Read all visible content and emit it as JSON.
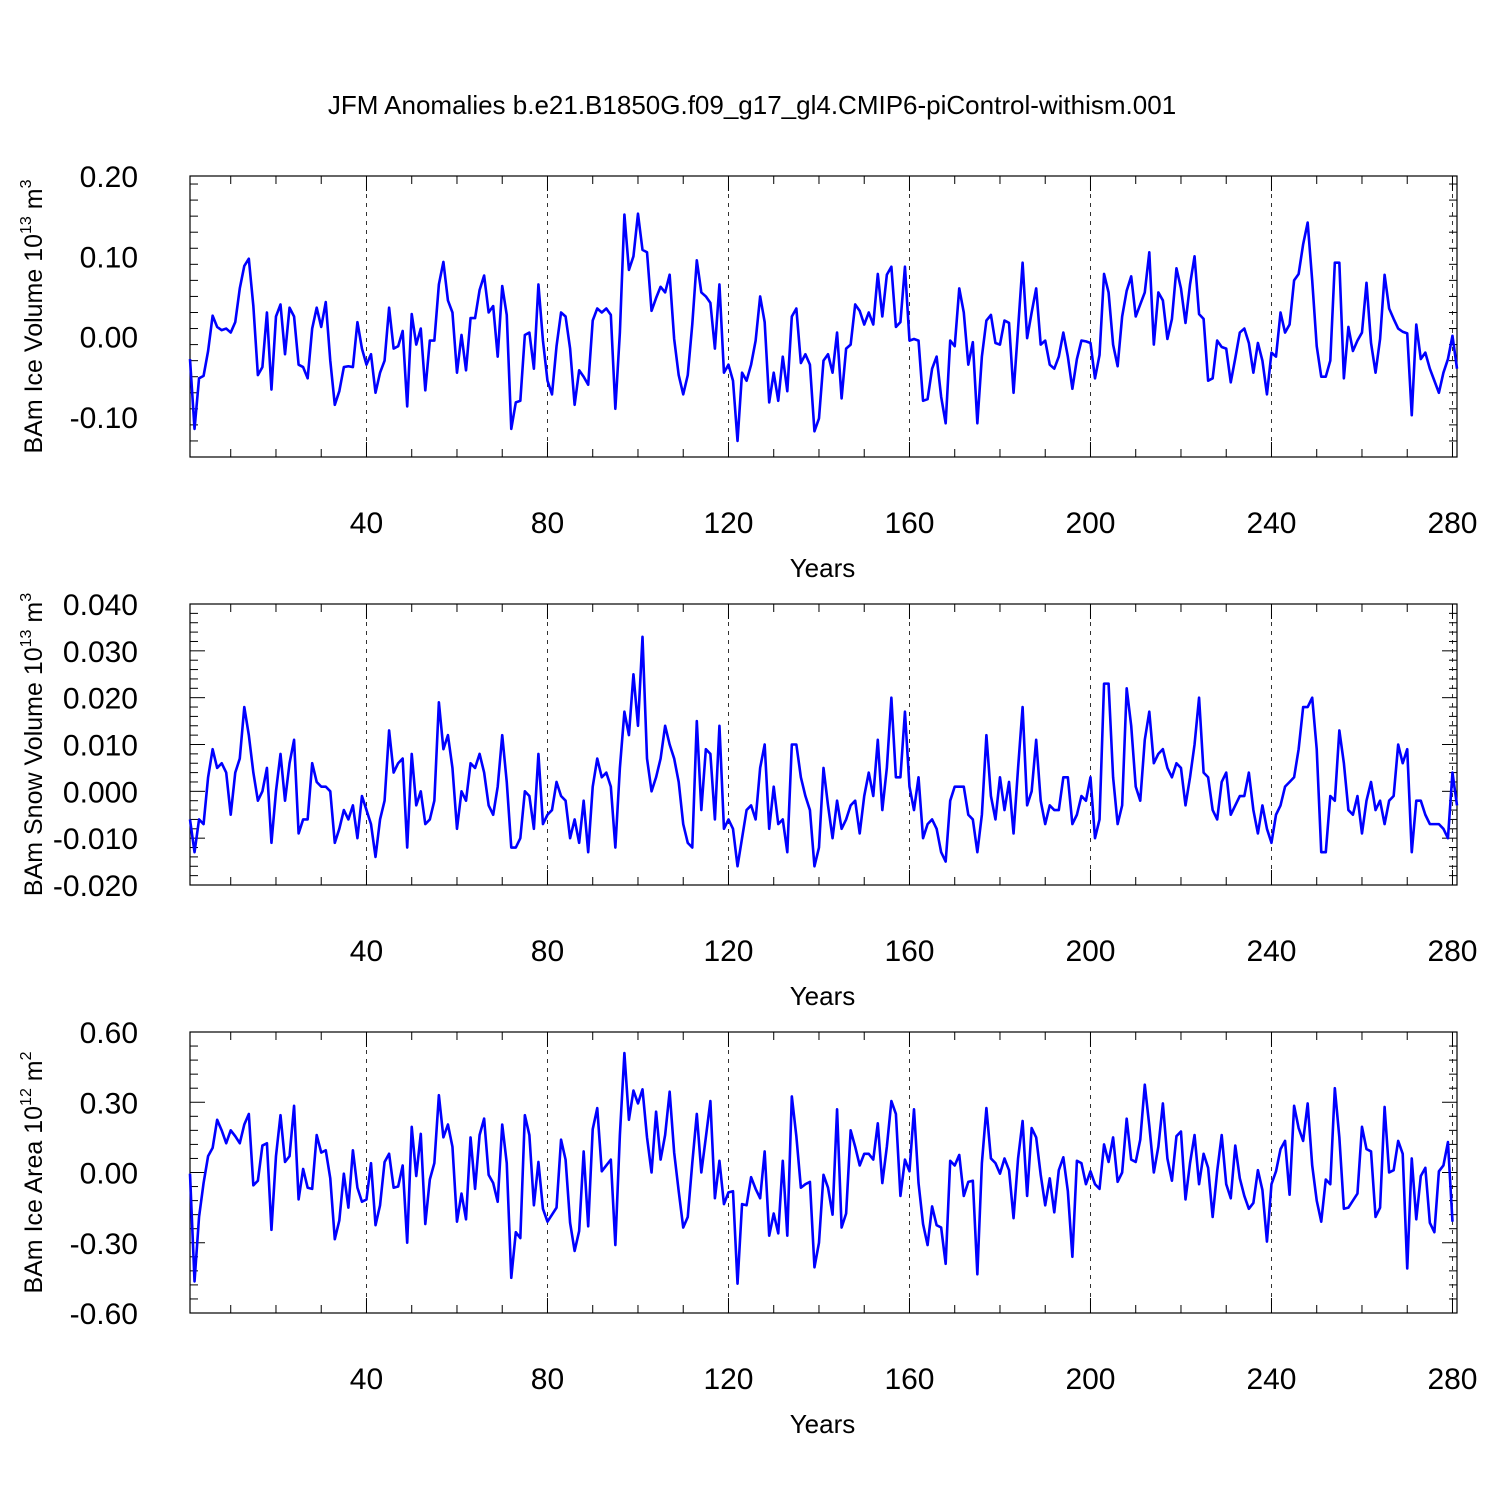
{
  "title": "JFM Anomalies b.e21.B1850G.f09_g17_gl4.CMIP6-piControl-withism.001",
  "chart_data": [
    {
      "type": "line",
      "xlabel": "Years",
      "ylabel": "BAm Ice Volume 10",
      "ylabel_exp": "13",
      "ylabel_unit": " m",
      "ylabel_unit_exp": "3",
      "xlim": [
        1,
        281
      ],
      "ylim": [
        -0.15,
        0.2
      ],
      "xticks": [
        40,
        80,
        120,
        160,
        200,
        240,
        280
      ],
      "yticks": [
        -0.1,
        0.0,
        0.1,
        0.2
      ],
      "ytick_labels": [
        "-0.10",
        "0.00",
        "0.10",
        "0.20"
      ],
      "grid_x_dashed": true,
      "line_color": "#0000ff",
      "y": [
        -0.028,
        -0.115,
        -0.052,
        -0.049,
        -0.018,
        0.026,
        0.012,
        0.008,
        0.01,
        0.005,
        0.018,
        0.06,
        0.088,
        0.097,
        0.038,
        -0.048,
        -0.038,
        0.03,
        -0.066,
        0.025,
        0.04,
        -0.022,
        0.036,
        0.025,
        -0.035,
        -0.038,
        -0.052,
        0.01,
        0.036,
        0.012,
        0.043,
        -0.03,
        -0.085,
        -0.068,
        -0.038,
        -0.037,
        -0.038,
        0.018,
        -0.015,
        -0.035,
        -0.022,
        -0.07,
        -0.045,
        -0.03,
        0.036,
        -0.015,
        -0.012,
        0.007,
        -0.087,
        0.028,
        -0.01,
        0.01,
        -0.067,
        -0.005,
        -0.005,
        0.065,
        0.093,
        0.045,
        0.03,
        -0.045,
        0.002,
        -0.042,
        0.023,
        0.023,
        0.058,
        0.076,
        0.03,
        0.038,
        -0.025,
        0.063,
        0.027,
        -0.115,
        -0.082,
        -0.08,
        0.002,
        0.005,
        -0.04,
        0.065,
        -0.005,
        -0.055,
        -0.072,
        -0.012,
        0.03,
        0.025,
        -0.015,
        -0.085,
        -0.042,
        -0.05,
        -0.06,
        0.02,
        0.035,
        0.03,
        0.035,
        0.027,
        -0.09,
        0.005,
        0.152,
        0.083,
        0.1,
        0.153,
        0.108,
        0.105,
        0.032,
        0.048,
        0.062,
        0.055,
        0.077,
        -0.003,
        -0.048,
        -0.072,
        -0.048,
        0.015,
        0.095,
        0.055,
        0.05,
        0.042,
        -0.015,
        0.065,
        -0.045,
        -0.035,
        -0.055,
        -0.13,
        -0.045,
        -0.055,
        -0.035,
        -0.005,
        0.05,
        0.018,
        -0.082,
        -0.045,
        -0.08,
        -0.025,
        -0.068,
        0.025,
        0.035,
        -0.033,
        -0.022,
        -0.035,
        -0.118,
        -0.102,
        -0.03,
        -0.022,
        -0.045,
        0.005,
        -0.077,
        -0.015,
        -0.01,
        0.04,
        0.032,
        0.015,
        0.03,
        0.015,
        0.078,
        0.025,
        0.077,
        0.087,
        0.012,
        0.018,
        0.087,
        -0.005,
        -0.003,
        -0.005,
        -0.08,
        -0.078,
        -0.04,
        -0.025,
        -0.075,
        -0.108,
        -0.005,
        -0.012,
        0.06,
        0.03,
        -0.035,
        -0.007,
        -0.108,
        -0.025,
        0.02,
        0.027,
        -0.008,
        -0.01,
        0.02,
        0.017,
        -0.07,
        0.01,
        0.092,
        -0.002,
        0.03,
        0.06,
        -0.01,
        -0.005,
        -0.035,
        -0.04,
        -0.025,
        0.005,
        -0.025,
        -0.065,
        -0.028,
        -0.005,
        -0.006,
        -0.008,
        -0.052,
        -0.023,
        0.078,
        0.055,
        -0.01,
        -0.037,
        0.025,
        0.057,
        0.075,
        0.025,
        0.04,
        0.055,
        0.105,
        -0.01,
        0.055,
        0.045,
        -0.003,
        0.022,
        0.085,
        0.06,
        0.017,
        0.065,
        0.1,
        0.028,
        0.022,
        -0.055,
        -0.052,
        -0.005,
        -0.013,
        -0.015,
        -0.057,
        -0.027,
        0.005,
        0.01,
        -0.008,
        -0.045,
        -0.008,
        -0.03,
        -0.072,
        -0.02,
        -0.025,
        0.03,
        0.005,
        0.015,
        0.07,
        0.078,
        0.115,
        0.142,
        0.07,
        -0.012,
        -0.05,
        -0.05,
        -0.03,
        0.092,
        0.092,
        -0.052,
        0.012,
        -0.018,
        -0.005,
        0.005,
        0.067,
        -0.008,
        -0.045,
        -0.003,
        0.077,
        0.035,
        0.022,
        0.01,
        0.006,
        0.004,
        -0.098,
        0.015,
        -0.028,
        -0.02,
        -0.04,
        -0.055,
        -0.07,
        -0.045,
        -0.028,
        0.001,
        -0.04
      ]
    },
    {
      "type": "line",
      "xlabel": "Years",
      "ylabel": "BAm Snow Volume 10",
      "ylabel_exp": "13",
      "ylabel_unit": " m",
      "ylabel_unit_exp": "3",
      "xlim": [
        1,
        281
      ],
      "ylim": [
        -0.02,
        0.04
      ],
      "xticks": [
        40,
        80,
        120,
        160,
        200,
        240,
        280
      ],
      "yticks": [
        -0.02,
        -0.01,
        0.0,
        0.01,
        0.02,
        0.03,
        0.04
      ],
      "ytick_labels": [
        "-0.020",
        "-0.010",
        "0.000",
        "0.010",
        "0.020",
        "0.030",
        "0.040"
      ],
      "grid_x_dashed": true,
      "line_color": "#0000ff",
      "y": [
        -0.006,
        -0.013,
        -0.006,
        -0.007,
        0.003,
        0.009,
        0.005,
        0.006,
        0.004,
        -0.005,
        0.004,
        0.007,
        0.018,
        0.012,
        0.004,
        -0.002,
        0.0,
        0.005,
        -0.011,
        0.0,
        0.008,
        -0.002,
        0.006,
        0.011,
        -0.009,
        -0.006,
        -0.006,
        0.006,
        0.002,
        0.001,
        0.001,
        0.0,
        -0.011,
        -0.008,
        -0.004,
        -0.006,
        -0.003,
        -0.01,
        -0.001,
        -0.004,
        -0.007,
        -0.014,
        -0.006,
        -0.002,
        0.013,
        0.004,
        0.006,
        0.007,
        -0.012,
        0.008,
        -0.003,
        0.0,
        -0.007,
        -0.006,
        -0.002,
        0.019,
        0.009,
        0.012,
        0.005,
        -0.008,
        0.0,
        -0.002,
        0.006,
        0.005,
        0.008,
        0.004,
        -0.003,
        -0.005,
        0.001,
        0.012,
        0.002,
        -0.012,
        -0.012,
        -0.01,
        0.0,
        -0.001,
        -0.008,
        0.008,
        -0.007,
        -0.005,
        -0.004,
        0.002,
        -0.001,
        -0.002,
        -0.01,
        -0.006,
        -0.011,
        -0.002,
        -0.013,
        0.001,
        0.007,
        0.003,
        0.004,
        0.001,
        -0.012,
        0.005,
        0.017,
        0.012,
        0.025,
        0.014,
        0.033,
        0.007,
        0.0,
        0.003,
        0.007,
        0.014,
        0.01,
        0.007,
        0.002,
        -0.007,
        -0.011,
        -0.012,
        0.015,
        -0.004,
        0.009,
        0.008,
        -0.006,
        0.014,
        -0.008,
        -0.006,
        -0.008,
        -0.016,
        -0.01,
        -0.004,
        -0.003,
        -0.006,
        0.005,
        0.01,
        -0.008,
        0.001,
        -0.007,
        -0.006,
        -0.013,
        0.01,
        0.01,
        0.003,
        -0.001,
        -0.004,
        -0.016,
        -0.012,
        0.005,
        -0.003,
        -0.01,
        -0.002,
        -0.008,
        -0.006,
        -0.003,
        -0.002,
        -0.009,
        -0.001,
        0.004,
        -0.001,
        0.011,
        -0.004,
        0.005,
        0.02,
        0.003,
        0.003,
        0.017,
        0.001,
        -0.004,
        0.003,
        -0.01,
        -0.007,
        -0.006,
        -0.008,
        -0.013,
        -0.015,
        -0.002,
        0.001,
        0.001,
        0.001,
        -0.005,
        -0.006,
        -0.013,
        -0.005,
        0.012,
        -0.001,
        -0.006,
        0.003,
        -0.004,
        0.002,
        -0.009,
        0.005,
        0.018,
        -0.003,
        0.0,
        0.011,
        -0.002,
        -0.007,
        -0.003,
        -0.004,
        -0.004,
        0.003,
        0.003,
        -0.007,
        -0.005,
        -0.001,
        -0.002,
        0.003,
        -0.01,
        -0.006,
        0.023,
        0.023,
        0.003,
        -0.007,
        -0.003,
        0.022,
        0.014,
        0.001,
        -0.002,
        0.011,
        0.017,
        0.006,
        0.008,
        0.009,
        0.005,
        0.003,
        0.006,
        0.005,
        -0.003,
        0.003,
        0.01,
        0.02,
        0.004,
        0.003,
        -0.004,
        -0.006,
        0.002,
        0.004,
        -0.005,
        -0.003,
        -0.001,
        -0.001,
        0.004,
        -0.004,
        -0.009,
        -0.003,
        -0.008,
        -0.011,
        -0.005,
        -0.003,
        0.001,
        0.002,
        0.003,
        0.009,
        0.018,
        0.018,
        0.02,
        0.009,
        -0.013,
        -0.013,
        -0.001,
        -0.002,
        0.013,
        0.006,
        -0.004,
        -0.005,
        -0.001,
        -0.009,
        -0.002,
        0.002,
        -0.004,
        -0.002,
        -0.007,
        -0.002,
        -0.001,
        0.01,
        0.006,
        0.009,
        -0.013,
        -0.002,
        -0.002,
        -0.005,
        -0.007,
        -0.007,
        -0.007,
        -0.008,
        -0.01,
        0.004,
        -0.003
      ]
    },
    {
      "type": "line",
      "xlabel": "Years",
      "ylabel": "BAm Ice Area 10",
      "ylabel_exp": "12",
      "ylabel_unit": " m",
      "ylabel_unit_exp": "2",
      "xlim": [
        1,
        281
      ],
      "ylim": [
        -0.6,
        0.6
      ],
      "xticks": [
        40,
        80,
        120,
        160,
        200,
        240,
        280
      ],
      "yticks": [
        -0.6,
        -0.3,
        0.0,
        0.3,
        0.6
      ],
      "ytick_labels": [
        "-0.60",
        "-0.30",
        "0.00",
        "0.30",
        "0.60"
      ],
      "grid_x_dashed": true,
      "line_color": "#0000ff",
      "y": [
        -0.005,
        -0.465,
        -0.19,
        -0.045,
        0.07,
        0.105,
        0.225,
        0.18,
        0.125,
        0.18,
        0.155,
        0.125,
        0.205,
        0.25,
        -0.055,
        -0.035,
        0.115,
        0.125,
        -0.245,
        0.07,
        0.245,
        0.045,
        0.07,
        0.285,
        -0.115,
        0.015,
        -0.065,
        -0.07,
        0.16,
        0.085,
        0.095,
        -0.025,
        -0.285,
        -0.205,
        -0.005,
        -0.15,
        0.095,
        -0.065,
        -0.125,
        -0.115,
        0.04,
        -0.225,
        -0.14,
        0.045,
        0.08,
        -0.065,
        -0.06,
        0.03,
        -0.3,
        0.195,
        -0.015,
        0.165,
        -0.22,
        -0.03,
        0.04,
        0.33,
        0.15,
        0.205,
        0.11,
        -0.21,
        -0.09,
        -0.2,
        0.15,
        -0.07,
        0.16,
        0.23,
        -0.01,
        -0.045,
        -0.125,
        0.205,
        0.04,
        -0.45,
        -0.255,
        -0.28,
        0.245,
        0.16,
        -0.14,
        0.045,
        -0.155,
        -0.21,
        -0.18,
        -0.15,
        0.14,
        0.055,
        -0.215,
        -0.335,
        -0.25,
        0.09,
        -0.23,
        0.185,
        0.275,
        0.005,
        0.03,
        0.055,
        -0.31,
        0.16,
        0.51,
        0.225,
        0.35,
        0.295,
        0.355,
        0.15,
        0.0,
        0.26,
        0.055,
        0.16,
        0.345,
        0.085,
        -0.08,
        -0.235,
        -0.19,
        0.04,
        0.25,
        0.0,
        0.15,
        0.305,
        -0.11,
        0.05,
        -0.135,
        -0.085,
        -0.08,
        -0.475,
        -0.135,
        -0.14,
        -0.02,
        -0.07,
        -0.11,
        0.09,
        -0.27,
        -0.175,
        -0.26,
        0.05,
        -0.27,
        0.325,
        0.155,
        -0.065,
        -0.05,
        -0.04,
        -0.405,
        -0.3,
        -0.01,
        -0.065,
        -0.18,
        0.27,
        -0.235,
        -0.175,
        0.18,
        0.11,
        0.03,
        0.08,
        0.08,
        0.055,
        0.21,
        -0.045,
        0.11,
        0.305,
        0.25,
        -0.1,
        0.055,
        0.005,
        0.27,
        -0.045,
        -0.22,
        -0.31,
        -0.145,
        -0.225,
        -0.235,
        -0.39,
        0.05,
        0.03,
        0.075,
        -0.1,
        -0.04,
        -0.035,
        -0.435,
        0.04,
        0.275,
        0.06,
        0.04,
        -0.005,
        0.06,
        0.01,
        -0.195,
        0.06,
        0.22,
        -0.1,
        0.19,
        0.15,
        -0.01,
        -0.14,
        -0.025,
        -0.17,
        0.01,
        0.065,
        -0.08,
        -0.36,
        0.05,
        0.04,
        -0.05,
        0.005,
        -0.05,
        -0.07,
        0.12,
        0.045,
        0.15,
        -0.04,
        0.0,
        0.23,
        0.055,
        0.045,
        0.14,
        0.375,
        0.2,
        0.0,
        0.11,
        0.295,
        0.06,
        -0.035,
        0.155,
        0.175,
        -0.115,
        0.04,
        0.16,
        -0.05,
        0.08,
        0.02,
        -0.19,
        0.005,
        0.16,
        -0.05,
        -0.11,
        0.115,
        -0.025,
        -0.1,
        -0.155,
        -0.13,
        0.01,
        -0.075,
        -0.295,
        -0.05,
        0.005,
        0.1,
        0.135,
        -0.095,
        0.285,
        0.19,
        0.135,
        0.295,
        0.03,
        -0.12,
        -0.21,
        -0.03,
        -0.05,
        0.36,
        0.15,
        -0.155,
        -0.15,
        -0.12,
        -0.09,
        0.195,
        0.1,
        0.09,
        -0.19,
        -0.15,
        0.28,
        0.0,
        0.01,
        0.135,
        0.08,
        -0.41,
        0.06,
        -0.2,
        -0.015,
        0.02,
        -0.215,
        -0.255,
        0.005,
        0.03,
        0.13,
        -0.21
      ]
    }
  ]
}
